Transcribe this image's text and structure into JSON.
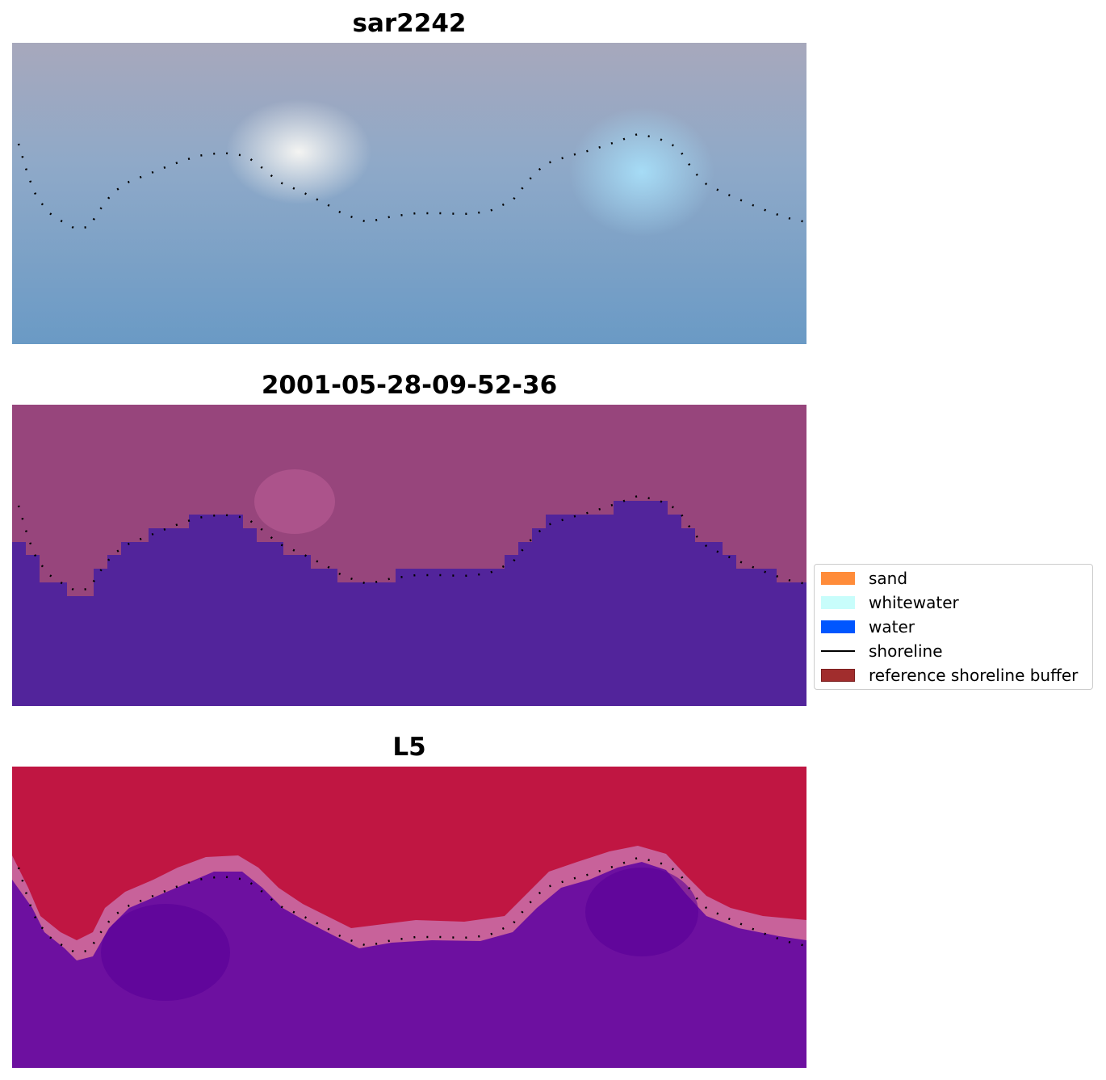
{
  "panels": [
    {
      "title": "sar2242",
      "colors": {
        "top": "#a7a8bc",
        "mid": "#8fa9c8",
        "bottom": "#6a9ac5",
        "bright": "#f4f4f2",
        "cyan": "#a6dcf6"
      }
    },
    {
      "title": "2001-05-28-09-52-36",
      "colors": {
        "land": "#97457c",
        "land_light": "#b55a91",
        "water": "#52249b"
      }
    },
    {
      "title": "L5",
      "colors": {
        "land": "#c01642",
        "edge": "#c8629a",
        "water": "#6d10a0",
        "water_deep": "#5a0098"
      }
    }
  ],
  "legend": {
    "items": [
      {
        "label": "sand",
        "color": "#ff8c3a"
      },
      {
        "label": "whitewater",
        "color": "#c8fdfb"
      },
      {
        "label": "water",
        "color": "#0056ff"
      },
      {
        "label": "shoreline",
        "color": "#000000"
      },
      {
        "label": "reference shoreline buffer",
        "color": "#a12d2d"
      }
    ]
  }
}
